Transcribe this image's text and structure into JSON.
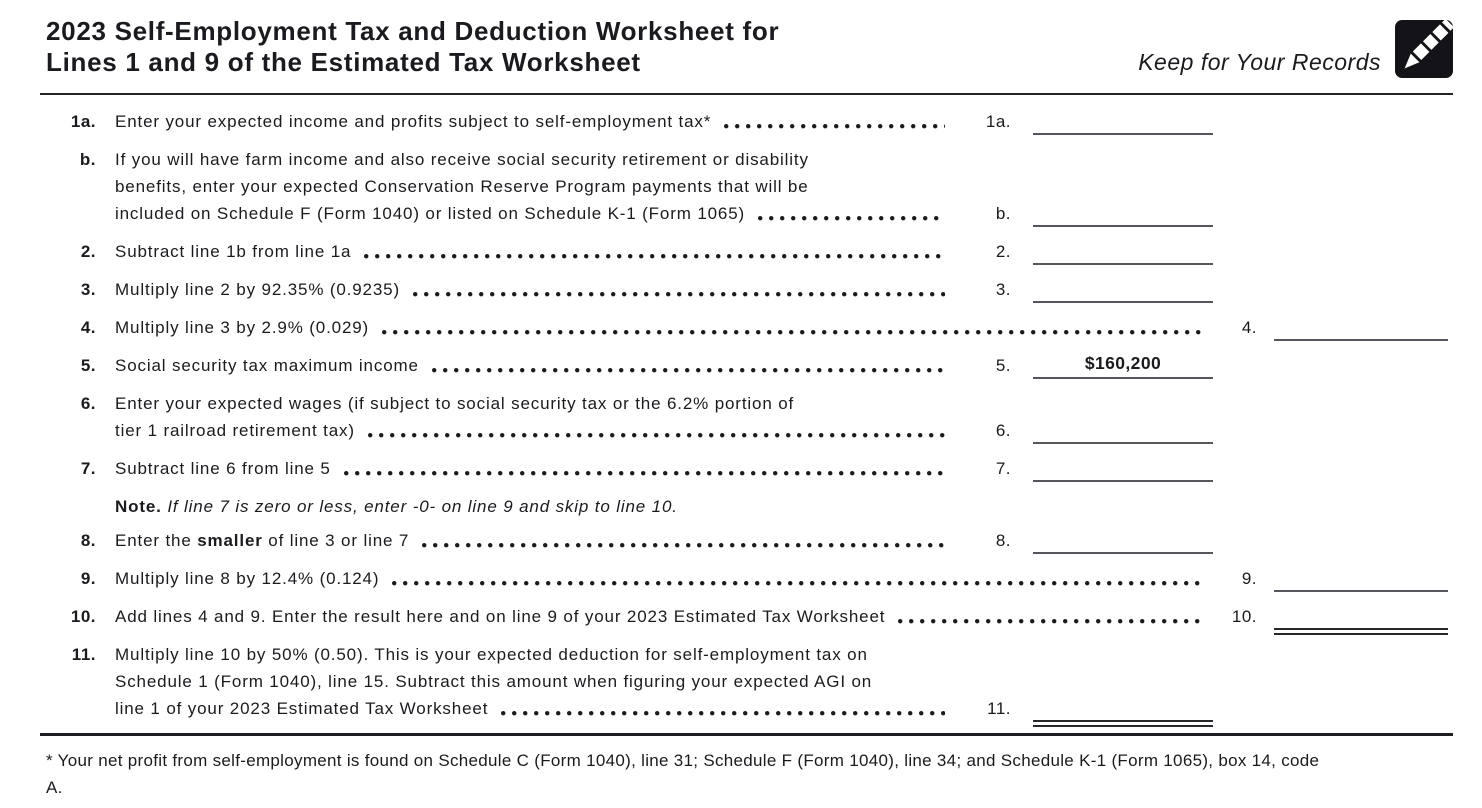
{
  "colors": {
    "text": "#1b1b1f",
    "rule_gray": "#56575c",
    "rule_black": "#242428"
  },
  "header": {
    "title_line1": "2023 Self-Employment Tax and Deduction Worksheet for",
    "title_line2": "Lines 1 and 9 of the Estimated Tax Worksheet",
    "keep_label": "Keep for Your Records",
    "icon": "pencil-icon"
  },
  "rows": [
    {
      "id": "1a",
      "num": "1a.",
      "lines": [
        [
          {
            "t": "Enter your expected income and profits subject to self-employment tax*"
          }
        ]
      ],
      "col": "inner",
      "label": "1a.",
      "value": "",
      "rule": "single"
    },
    {
      "id": "1b",
      "num": "b.",
      "lines": [
        [
          {
            "t": "If you will have farm income and also receive social security retirement or disability"
          }
        ],
        [
          {
            "t": "benefits, enter your expected Conservation Reserve Program payments that will be"
          }
        ],
        [
          {
            "t": "included on Schedule F (Form 1040) or listed on Schedule K-1 (Form 1065)"
          }
        ]
      ],
      "col": "inner",
      "label": "b.",
      "value": "",
      "rule": "single"
    },
    {
      "id": "2",
      "num": "2.",
      "lines": [
        [
          {
            "t": "Subtract line 1b from line 1a"
          }
        ]
      ],
      "col": "inner",
      "label": "2.",
      "value": "",
      "rule": "single"
    },
    {
      "id": "3",
      "num": "3.",
      "lines": [
        [
          {
            "t": "Multiply line 2 by 92.35% (0.9235)"
          }
        ]
      ],
      "col": "inner",
      "label": "3.",
      "value": "",
      "rule": "single"
    },
    {
      "id": "4",
      "num": "4.",
      "lines": [
        [
          {
            "t": "Multiply line 3 by 2.9% (0.029)"
          }
        ]
      ],
      "col": "outer",
      "label": "4.",
      "value": "",
      "rule": "single"
    },
    {
      "id": "5",
      "num": "5.",
      "lines": [
        [
          {
            "t": "Social security tax maximum income"
          }
        ]
      ],
      "col": "inner",
      "label": "5.",
      "value": "$160,200",
      "rule": "single"
    },
    {
      "id": "6",
      "num": "6.",
      "lines": [
        [
          {
            "t": "Enter your expected wages (if subject to social security tax or the 6.2% portion of"
          }
        ],
        [
          {
            "t": "tier 1 railroad retirement tax)"
          }
        ]
      ],
      "col": "inner",
      "label": "6.",
      "value": "",
      "rule": "single"
    },
    {
      "id": "7",
      "num": "7.",
      "lines": [
        [
          {
            "t": "Subtract line 6 from line 5"
          }
        ]
      ],
      "col": "inner",
      "label": "7.",
      "value": "",
      "rule": "single"
    },
    {
      "type": "note",
      "bold": "Note.",
      "text": "If line 7 is zero or less, enter -0- on line 9 and skip to line 10."
    },
    {
      "id": "8",
      "num": "8.",
      "lines": [
        [
          {
            "t": "Enter the "
          },
          {
            "t": "smaller",
            "b": true
          },
          {
            "t": " of line 3 or line 7"
          }
        ]
      ],
      "col": "inner",
      "label": "8.",
      "value": "",
      "rule": "single"
    },
    {
      "id": "9",
      "num": "9.",
      "lines": [
        [
          {
            "t": "Multiply line 8 by 12.4% (0.124)"
          }
        ]
      ],
      "col": "outer",
      "label": "9.",
      "value": "",
      "rule": "single"
    },
    {
      "id": "10",
      "num": "10.",
      "lines": [
        [
          {
            "t": "Add lines 4 and 9. Enter the result here and on line 9 of your 2023 Estimated Tax Worksheet"
          }
        ]
      ],
      "col": "outer",
      "label": "10.",
      "value": "",
      "rule": "double"
    },
    {
      "id": "11",
      "num": "11.",
      "lines": [
        [
          {
            "t": "Multiply line 10 by 50% (0.50). This is your expected deduction for self-employment tax on"
          }
        ],
        [
          {
            "t": "Schedule 1 (Form 1040), line 15. Subtract this amount when figuring your expected AGI on"
          }
        ],
        [
          {
            "t": "line 1 of your 2023 Estimated Tax Worksheet"
          }
        ]
      ],
      "col": "inner",
      "label": "11.",
      "value": "",
      "rule": "double"
    }
  ],
  "footnote": {
    "lines": [
      "* Your net profit from self-employment is found on Schedule C (Form 1040), line 31; Schedule F (Form 1040), line 34; and Schedule K-1 (Form 1065), box 14, code",
      "A."
    ]
  }
}
